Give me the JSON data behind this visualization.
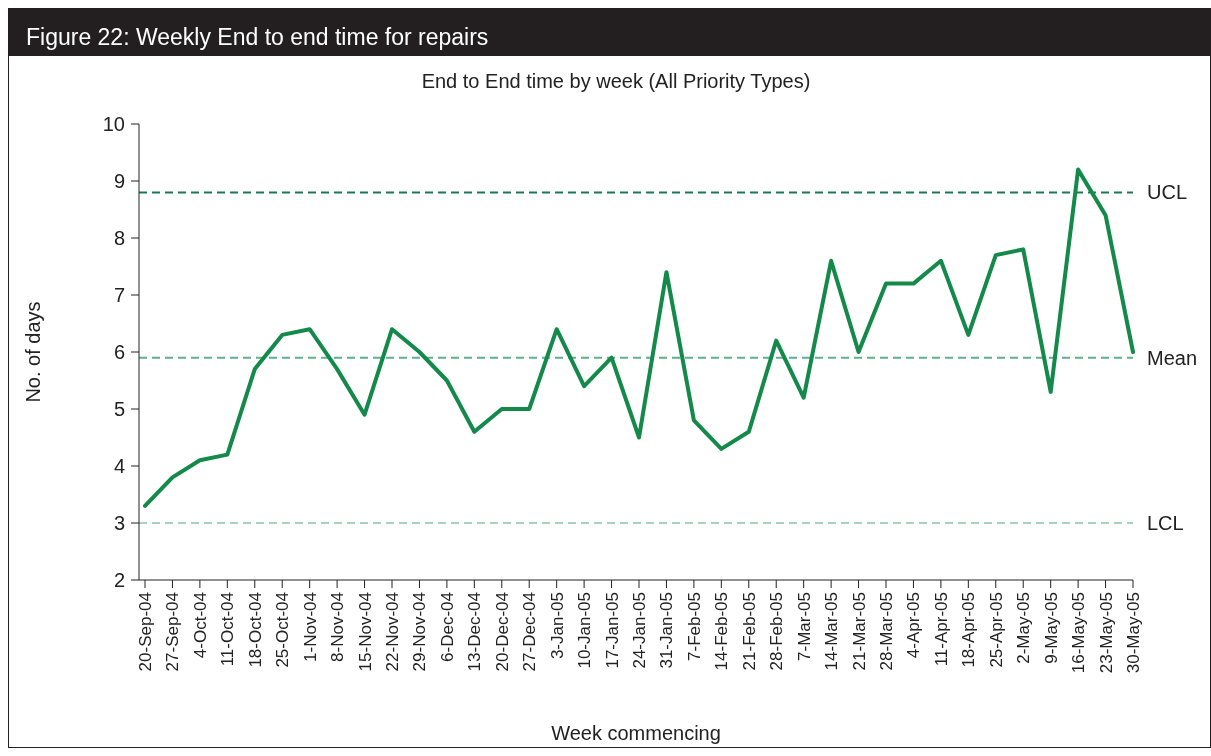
{
  "chart_data": {
    "type": "line",
    "title": "Figure 22: Weekly End to end time for repairs",
    "subtitle": "End to End time by week (All Priority Types)",
    "xlabel": "Week commencing",
    "ylabel": "No. of days",
    "categories": [
      "20-Sep-04",
      "27-Sep-04",
      "4-Oct-04",
      "11-Oct-04",
      "18-Oct-04",
      "25-Oct-04",
      "1-Nov-04",
      "8-Nov-04",
      "15-Nov-04",
      "22-Nov-04",
      "29-Nov-04",
      "6-Dec-04",
      "13-Dec-04",
      "20-Dec-04",
      "27-Dec-04",
      "3-Jan-05",
      "10-Jan-05",
      "17-Jan-05",
      "24-Jan-05",
      "31-Jan-05",
      "7-Feb-05",
      "14-Feb-05",
      "21-Feb-05",
      "28-Feb-05",
      "7-Mar-05",
      "14-Mar-05",
      "21-Mar-05",
      "28-Mar-05",
      "4-Apr-05",
      "11-Apr-05",
      "18-Apr-05",
      "25-Apr-05",
      "2-May-05",
      "9-May-05",
      "16-May-05",
      "23-May-05",
      "30-May-05"
    ],
    "series": [
      {
        "color": "#138a4a",
        "values": [
          3.3,
          3.8,
          4.1,
          4.2,
          5.7,
          6.3,
          6.4,
          5.7,
          4.9,
          6.4,
          6.0,
          5.5,
          4.6,
          5.0,
          5.0,
          6.4,
          5.4,
          5.9,
          4.5,
          7.4,
          4.8,
          4.3,
          4.6,
          6.2,
          5.2,
          7.6,
          6.0,
          7.2,
          7.2,
          7.6,
          6.3,
          7.7,
          7.8,
          5.3,
          9.2,
          8.4,
          6.0
        ]
      }
    ],
    "ylim": [
      2,
      10
    ],
    "yticks": [
      2,
      3,
      4,
      5,
      6,
      7,
      8,
      9,
      10
    ],
    "grid": false,
    "line_style": "solid",
    "ref_lines": [
      {
        "axis": "y",
        "value": 8.8,
        "label": "UCL",
        "color": "#1a7a4f",
        "line_style": "dashed"
      },
      {
        "axis": "y",
        "value": 5.9,
        "label": "Mean",
        "color": "#5fb08e",
        "line_style": "dashed"
      },
      {
        "axis": "y",
        "value": 3.0,
        "label": "LCL",
        "color": "#a6d3bf",
        "line_style": "dashed"
      }
    ]
  }
}
